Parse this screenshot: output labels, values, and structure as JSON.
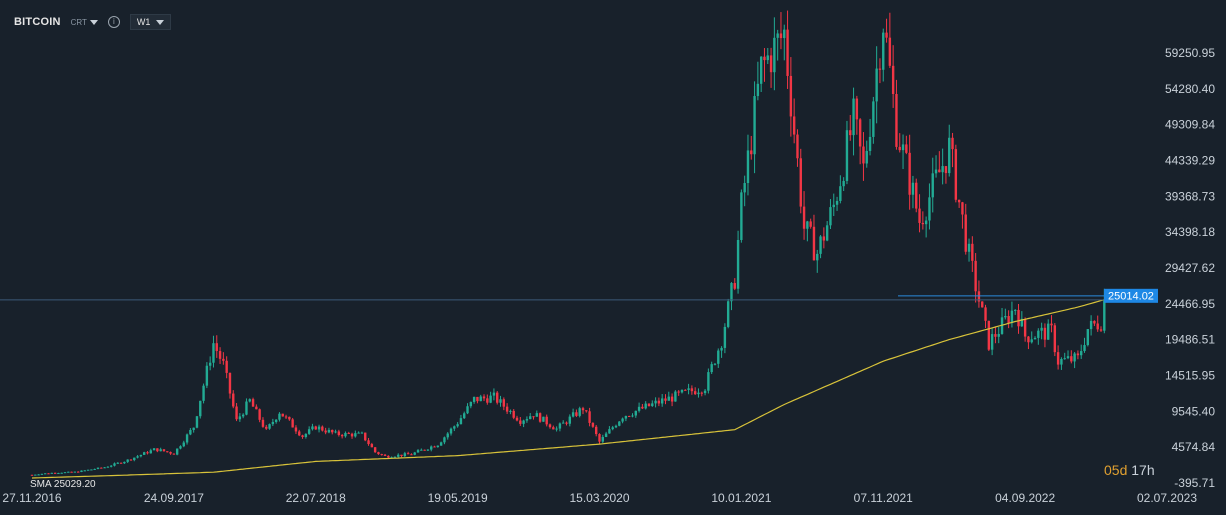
{
  "toolbar": {
    "symbol": "BITCOIN",
    "chart_type": "CRT",
    "info_icon": "info-icon",
    "timeframe": "W1"
  },
  "countdown": {
    "days": "05d",
    "hours": "17h"
  },
  "colors": {
    "background": "#18212b",
    "up": "#22ab94",
    "down": "#f23645",
    "sma": "#d8c33a",
    "price_line": "#2a8bdc",
    "price_tag": "#1e88e5",
    "axis_text": "#c9d1d9"
  },
  "chart_data": {
    "type": "candlestick",
    "symbol": "BITCOIN",
    "timeframe": "W1",
    "y_ticks": [
      59250.95,
      54280.4,
      49309.84,
      44339.29,
      39368.73,
      34398.18,
      29427.62,
      24466.95,
      19486.51,
      14515.95,
      9545.4,
      4574.84,
      -395.71
    ],
    "y_tick_labels": [
      "59250.95",
      "54280.40",
      "49309.84",
      "44339.29",
      "39368.73",
      "34398.18",
      "29427.62",
      "24466.95",
      "19486.51",
      "14515.95",
      "9545.40",
      "4574.84",
      "-395.71"
    ],
    "x_tick_labels": [
      "27.11.2016",
      "24.09.2017",
      "22.07.2018",
      "19.05.2019",
      "15.03.2020",
      "10.01.2021",
      "07.11.2021",
      "04.09.2022",
      "02.07.2023"
    ],
    "current_price": 25014.02,
    "current_price_label": "25014.02",
    "sma_legend": "SMA 25029.20",
    "price_path": [
      [
        "2016-11-27",
        740
      ],
      [
        "2017-01-01",
        980
      ],
      [
        "2017-03-01",
        1150
      ],
      [
        "2017-05-01",
        1800
      ],
      [
        "2017-06-15",
        2700
      ],
      [
        "2017-08-15",
        4300
      ],
      [
        "2017-09-24",
        3700
      ],
      [
        "2017-11-05",
        7400
      ],
      [
        "2017-12-17",
        19000
      ],
      [
        "2018-01-07",
        16000
      ],
      [
        "2018-02-04",
        8200
      ],
      [
        "2018-03-04",
        11000
      ],
      [
        "2018-04-08",
        6800
      ],
      [
        "2018-05-06",
        9500
      ],
      [
        "2018-06-24",
        6100
      ],
      [
        "2018-07-22",
        7400
      ],
      [
        "2018-09-02",
        6400
      ],
      [
        "2018-10-28",
        6300
      ],
      [
        "2018-11-25",
        3900
      ],
      [
        "2018-12-16",
        3300
      ],
      [
        "2019-02-10",
        3600
      ],
      [
        "2019-04-07",
        5000
      ],
      [
        "2019-05-19",
        8000
      ],
      [
        "2019-06-23",
        11200
      ],
      [
        "2019-08-04",
        11500
      ],
      [
        "2019-09-29",
        8300
      ],
      [
        "2019-10-27",
        9200
      ],
      [
        "2019-12-15",
        7100
      ],
      [
        "2020-02-09",
        10000
      ],
      [
        "2020-03-15",
        5300
      ],
      [
        "2020-05-03",
        8900
      ],
      [
        "2020-07-26",
        11000
      ],
      [
        "2020-10-25",
        13000
      ],
      [
        "2020-11-29",
        19500
      ],
      [
        "2020-12-27",
        28000
      ],
      [
        "2021-01-10",
        38000
      ],
      [
        "2021-02-21",
        57000
      ],
      [
        "2021-04-11",
        62000
      ],
      [
        "2021-05-23",
        35000
      ],
      [
        "2021-06-20",
        31500
      ],
      [
        "2021-07-25",
        38000
      ],
      [
        "2021-09-05",
        50000
      ],
      [
        "2021-09-26",
        43000
      ],
      [
        "2021-11-07",
        64000
      ],
      [
        "2021-12-05",
        49000
      ],
      [
        "2022-01-23",
        36000
      ],
      [
        "2022-03-27",
        46000
      ],
      [
        "2022-05-08",
        31000
      ],
      [
        "2022-06-19",
        19000
      ],
      [
        "2022-08-14",
        24000
      ],
      [
        "2022-09-04",
        20000
      ],
      [
        "2022-10-30",
        20600
      ],
      [
        "2022-11-13",
        16500
      ],
      [
        "2022-12-25",
        16800
      ],
      [
        "2023-01-15",
        21000
      ],
      [
        "2023-02-12",
        22000
      ],
      [
        "2023-02-19",
        25014
      ]
    ],
    "sma_path": [
      [
        "2016-11-27",
        300
      ],
      [
        "2017-06-15",
        700
      ],
      [
        "2017-12-17",
        1100
      ],
      [
        "2018-07-22",
        2600
      ],
      [
        "2019-05-19",
        3400
      ],
      [
        "2020-03-15",
        5000
      ],
      [
        "2020-12-27",
        7000
      ],
      [
        "2021-04-11",
        10500
      ],
      [
        "2021-07-25",
        13500
      ],
      [
        "2021-11-07",
        16500
      ],
      [
        "2022-03-27",
        19500
      ],
      [
        "2022-08-14",
        22000
      ],
      [
        "2022-12-25",
        24000
      ],
      [
        "2023-02-19",
        25029
      ]
    ]
  }
}
